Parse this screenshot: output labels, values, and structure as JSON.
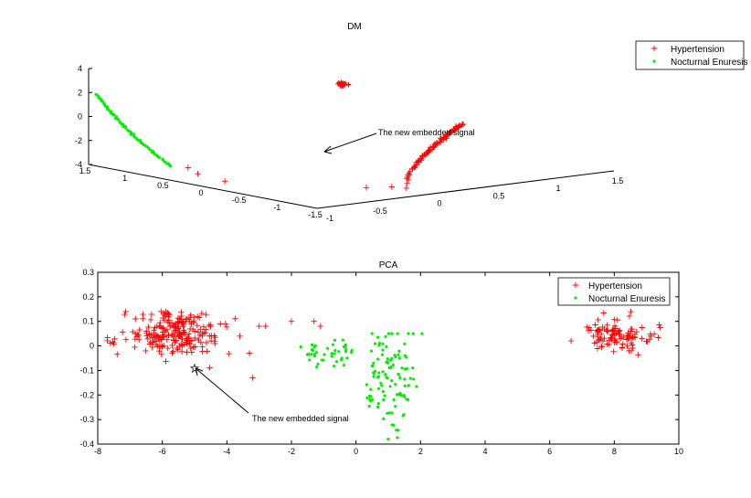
{
  "colors": {
    "hypertension": "#ff0000",
    "enuresis": "#00ee00",
    "axis": "#000000",
    "background": "#ffffff"
  },
  "chart_data": [
    {
      "type": "scatter",
      "projection": "3d",
      "title": "DM",
      "grid": false,
      "legend_position": "top-right",
      "axes": {
        "z_ticks": [
          "4",
          "2",
          "0",
          "-2",
          "-4"
        ],
        "left_floor_ticks": [
          "1.5",
          "1",
          "0.5",
          "0",
          "-0.5",
          "-1",
          "-1.5"
        ],
        "right_floor_ticks": [
          "-1",
          "-0.5",
          "0",
          "0.5",
          "1",
          "1.5"
        ],
        "zlim": [
          -4,
          4
        ],
        "ylim": [
          -1.5,
          1.5
        ],
        "xlim": [
          -1,
          1.5
        ]
      },
      "series": [
        {
          "name": "Hypertension",
          "marker": "+",
          "segments": [
            {
              "desc": "long arc",
              "x0": 0.0,
              "x1": 0.55,
              "y0": -1.1,
              "y1": -1.0,
              "z0": -4.0,
              "z1": 0.5,
              "count": 80
            },
            {
              "desc": "compact cluster",
              "x": 1.05,
              "y": 1.35,
              "z": 0.3,
              "count": 25
            },
            {
              "desc": "scattered",
              "points": [
                [
                  -0.9,
                  0.35,
                  -3.0
                ],
                [
                  -0.85,
                  0.3,
                  -3.5
                ],
                [
                  -0.75,
                  0.1,
                  -4.0
                ],
                [
                  -0.2,
                  -0.9,
                  -4.0
                ],
                [
                  -0.05,
                  -1.0,
                  -4.0
                ]
              ]
            }
          ]
        },
        {
          "name": "Nocturnal Enuresis",
          "marker": "*",
          "segments": [
            {
              "desc": "arc",
              "x0": -1.0,
              "x1": -0.95,
              "y0": 1.4,
              "y1": 0.5,
              "z0": 2.0,
              "z1": -3.0,
              "count": 70
            }
          ]
        }
      ],
      "annotation": "The new embedded signal"
    },
    {
      "type": "scatter",
      "title": "PCA",
      "grid": false,
      "legend_position": "top-right",
      "xlim": [
        -8,
        10
      ],
      "ylim": [
        -0.4,
        0.3
      ],
      "x_ticks": [
        "-8",
        "-6",
        "-4",
        "-2",
        "0",
        "2",
        "4",
        "6",
        "8",
        "10"
      ],
      "y_ticks": [
        "0.3",
        "0.2",
        "0.1",
        "0",
        "-0.1",
        "-0.2",
        "-0.3",
        "-0.4"
      ],
      "series": [
        {
          "name": "Hypertension",
          "marker": "+",
          "clusters": [
            {
              "cx": -5.6,
              "cy": 0.05,
              "sx": 0.75,
              "sy": 0.045,
              "count": 230
            },
            {
              "cx": 8.1,
              "cy": 0.04,
              "sx": 0.55,
              "sy": 0.03,
              "count": 110
            }
          ],
          "points": [
            [
              -3.0,
              0.08
            ],
            [
              -2.8,
              0.08
            ],
            [
              -2.0,
              0.1
            ],
            [
              -1.3,
              0.1
            ],
            [
              -1.1,
              0.08
            ],
            [
              -3.3,
              -0.03
            ],
            [
              -3.2,
              -0.13
            ],
            [
              -4.2,
              0.09
            ],
            [
              -3.6,
              0.04
            ]
          ]
        },
        {
          "name": "Nocturnal Enuresis",
          "marker": "*",
          "clusters": [
            {
              "cx": -1.25,
              "cy": -0.03,
              "sx": 0.25,
              "sy": 0.025,
              "count": 20
            },
            {
              "cx": -0.5,
              "cy": -0.02,
              "sx": 0.25,
              "sy": 0.03,
              "count": 20
            },
            {
              "cx": 0.75,
              "cy": -0.12,
              "sx": 0.25,
              "sy": 0.12,
              "count": 50
            },
            {
              "cx": 1.35,
              "cy": -0.12,
              "sx": 0.25,
              "sy": 0.13,
              "count": 55
            }
          ]
        }
      ],
      "annotation": {
        "text": "The new embedded signal",
        "target": [
          -5.0,
          -0.09
        ]
      }
    }
  ]
}
